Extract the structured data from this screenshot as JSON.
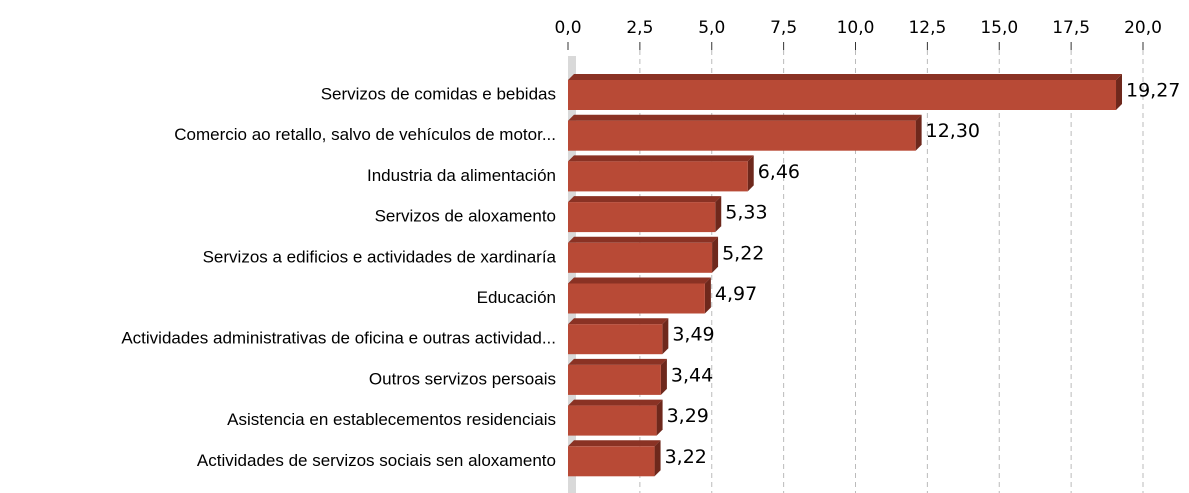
{
  "chart_data": {
    "type": "bar",
    "orientation": "horizontal",
    "categories": [
      "Servizos de comidas e bebidas",
      "Comercio ao retallo, salvo de vehículos de motor...",
      "Industria da alimentación",
      "Servizos de aloxamento",
      "Servizos a edificios e actividades de xardinaría",
      "Educación",
      "Actividades administrativas de oficina e outras actividad...",
      "Outros servizos persoais",
      "Asistencia en establecementos residenciais",
      "Actividades de servizos sociais sen aloxamento"
    ],
    "values": [
      19.27,
      12.3,
      6.46,
      5.33,
      5.22,
      4.97,
      3.49,
      3.44,
      3.29,
      3.22
    ],
    "value_labels": [
      "19,27",
      "12,30",
      "6,46",
      "5,33",
      "5,22",
      "4,97",
      "3,49",
      "3,44",
      "3,29",
      "3,22"
    ],
    "color": "#b84a36",
    "xlim": [
      0,
      20
    ],
    "xticks": [
      {
        "value": 0,
        "label": "0,0"
      },
      {
        "value": 2.5,
        "label": "2,5"
      },
      {
        "value": 5,
        "label": "5,0"
      },
      {
        "value": 7.5,
        "label": "7,5"
      },
      {
        "value": 10,
        "label": "10,0"
      },
      {
        "value": 12.5,
        "label": "12,5"
      },
      {
        "value": 15,
        "label": "15,0"
      },
      {
        "value": 17.5,
        "label": "17,5"
      },
      {
        "value": 20,
        "label": "20,0"
      }
    ],
    "grid": true
  }
}
